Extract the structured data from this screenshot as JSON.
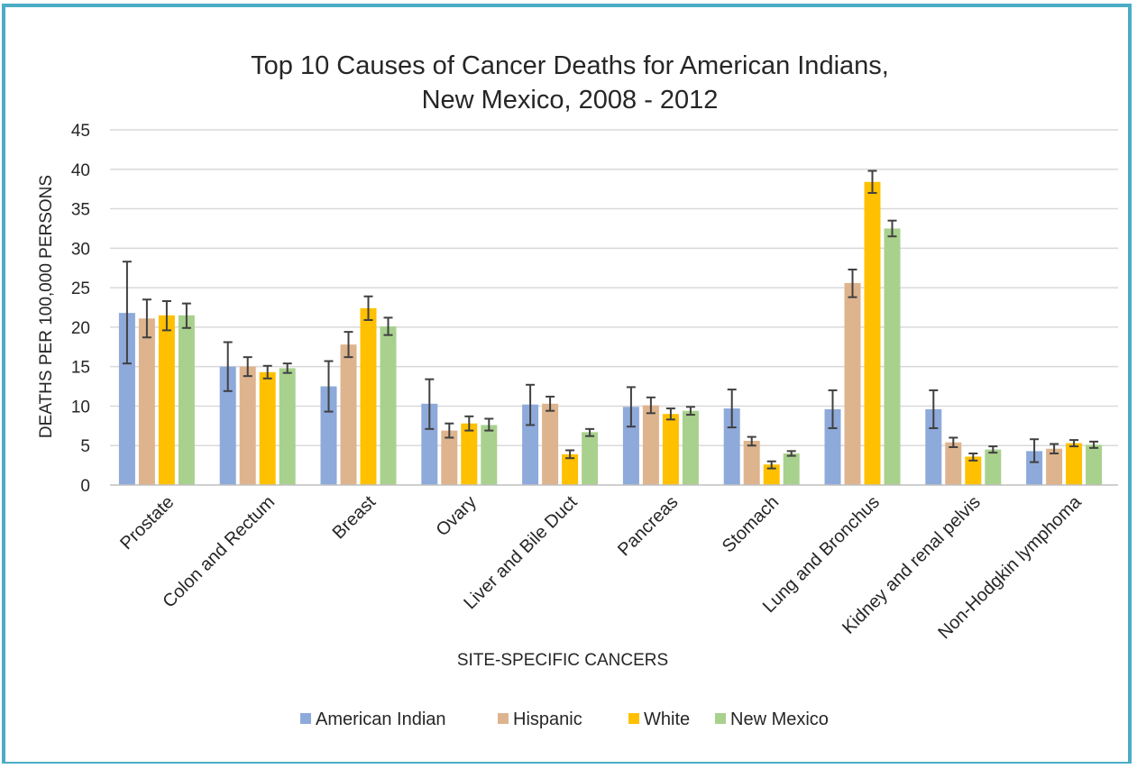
{
  "chart_data": {
    "type": "bar",
    "title_lines": [
      "Top 10 Causes of Cancer Deaths for American Indians,",
      "New Mexico, 2008 - 2012"
    ],
    "xlabel": "SITE-SPECIFIC CANCERS",
    "ylabel": "DEATHS PER 100,000 PERSONS",
    "ylim": [
      0,
      45
    ],
    "yticks": [
      0,
      5,
      10,
      15,
      20,
      25,
      30,
      35,
      40,
      45
    ],
    "grid": true,
    "legend_position": "bottom",
    "categories": [
      "Prostate",
      "Colon and Rectum",
      "Breast",
      "Ovary",
      "Liver and Bile Duct",
      "Pancreas",
      "Stomach",
      "Lung and Bronchus",
      "Kidney and renal pelvis",
      "Non-Hodgkin lymphoma"
    ],
    "series": [
      {
        "name": "American Indian",
        "color": "#8eaadb",
        "values": [
          21.8,
          15.0,
          12.5,
          10.3,
          10.2,
          9.9,
          9.7,
          9.6,
          9.6,
          4.3
        ],
        "err_low": [
          15.4,
          11.9,
          9.3,
          7.1,
          7.6,
          7.4,
          7.3,
          7.2,
          7.2,
          2.9
        ],
        "err_high": [
          28.3,
          18.1,
          15.7,
          13.4,
          12.7,
          12.4,
          12.1,
          12.0,
          12.0,
          5.8
        ]
      },
      {
        "name": "Hispanic",
        "color": "#deb48e",
        "values": [
          21.1,
          15.0,
          17.8,
          6.9,
          10.3,
          10.1,
          5.6,
          25.6,
          5.4,
          4.6
        ],
        "err_low": [
          18.7,
          13.8,
          16.2,
          6.0,
          9.4,
          9.1,
          5.0,
          23.8,
          4.8,
          4.0
        ],
        "err_high": [
          23.5,
          16.2,
          19.4,
          7.8,
          11.2,
          11.1,
          6.1,
          27.3,
          6.0,
          5.2
        ]
      },
      {
        "name": "White",
        "color": "#ffc000",
        "values": [
          21.5,
          14.3,
          22.4,
          7.8,
          3.9,
          9.0,
          2.6,
          38.4,
          3.6,
          5.3
        ],
        "err_low": [
          19.6,
          13.5,
          20.9,
          6.9,
          3.4,
          8.3,
          2.1,
          37.0,
          3.1,
          4.9
        ],
        "err_high": [
          23.3,
          15.1,
          23.9,
          8.7,
          4.4,
          9.7,
          3.0,
          39.8,
          4.0,
          5.7
        ]
      },
      {
        "name": "New Mexico",
        "color": "#a9d18e",
        "values": [
          21.5,
          14.8,
          20.1,
          7.6,
          6.7,
          9.4,
          4.0,
          32.5,
          4.5,
          5.1
        ],
        "err_low": [
          19.9,
          14.2,
          19.0,
          6.9,
          6.2,
          8.9,
          3.7,
          31.5,
          4.1,
          4.7
        ],
        "err_high": [
          23.0,
          15.4,
          21.2,
          8.4,
          7.1,
          9.9,
          4.3,
          33.5,
          4.9,
          5.5
        ]
      }
    ]
  }
}
